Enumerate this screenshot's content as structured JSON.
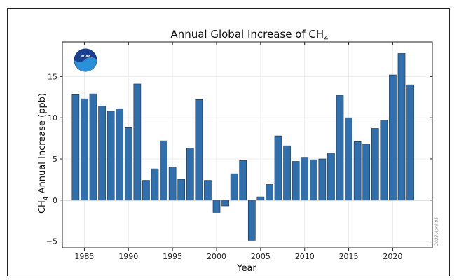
{
  "chart_data": {
    "type": "bar",
    "title_main": "Annual Global Increase of CH",
    "title_sub": "4",
    "ylabel_pre": "CH",
    "ylabel_sub": "4",
    "ylabel_post": " Annual Increase (ppb)",
    "xlabel": "Year",
    "stamp": "2023-April-05",
    "logo_text": "NOAA",
    "bar_color": "#2f6fad",
    "zero_line_color": "#888888",
    "grid": true,
    "xlim": [
      1982.5,
      2024.5
    ],
    "ylim": [
      -5.8,
      19.2
    ],
    "xticks": [
      {
        "value": 1985,
        "label": "1985"
      },
      {
        "value": 1990,
        "label": "1990"
      },
      {
        "value": 1995,
        "label": "1995"
      },
      {
        "value": 2000,
        "label": "2000"
      },
      {
        "value": 2005,
        "label": "2005"
      },
      {
        "value": 2010,
        "label": "2010"
      },
      {
        "value": 2015,
        "label": "2015"
      },
      {
        "value": 2020,
        "label": "2020"
      }
    ],
    "yticks": [
      {
        "value": -5,
        "label": "−5"
      },
      {
        "value": 0,
        "label": "0"
      },
      {
        "value": 5,
        "label": "5"
      },
      {
        "value": 10,
        "label": "10"
      },
      {
        "value": 15,
        "label": "15"
      }
    ],
    "x": [
      1984,
      1985,
      1986,
      1987,
      1988,
      1989,
      1990,
      1991,
      1992,
      1993,
      1994,
      1995,
      1996,
      1997,
      1998,
      1999,
      2000,
      2001,
      2002,
      2003,
      2004,
      2005,
      2006,
      2007,
      2008,
      2009,
      2010,
      2011,
      2012,
      2013,
      2014,
      2015,
      2016,
      2017,
      2018,
      2019,
      2020,
      2021,
      2022
    ],
    "values": [
      12.8,
      12.3,
      12.9,
      11.4,
      10.8,
      11.1,
      8.8,
      14.1,
      2.4,
      3.8,
      7.2,
      4.0,
      2.5,
      6.3,
      12.2,
      2.4,
      -1.5,
      -0.7,
      3.2,
      4.8,
      -4.9,
      0.4,
      1.9,
      7.8,
      6.6,
      4.7,
      5.2,
      4.9,
      5.0,
      5.7,
      12.7,
      10.0,
      7.1,
      6.8,
      8.7,
      9.7,
      15.2,
      17.8,
      14.0
    ]
  }
}
